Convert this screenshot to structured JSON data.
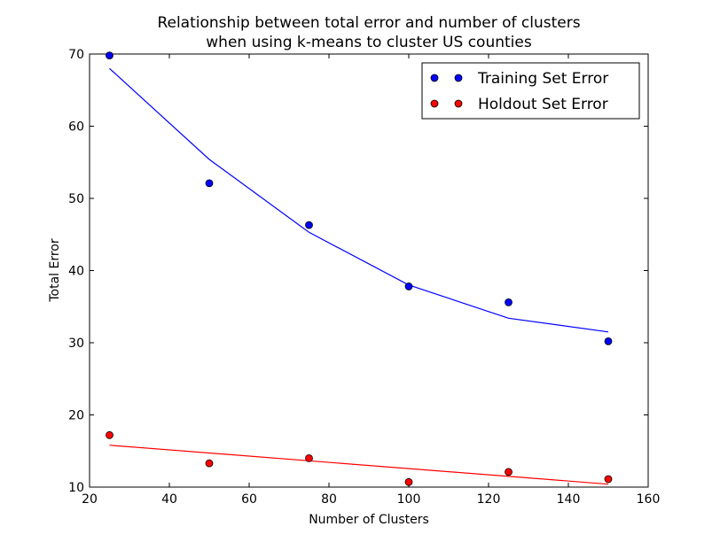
{
  "chart_data": {
    "type": "scatter",
    "title_lines": [
      "Relationship between total error and number of clusters",
      "when using k-means to cluster US counties"
    ],
    "xlabel": "Number of Clusters",
    "ylabel": "Total Error",
    "xlim": [
      20,
      160
    ],
    "ylim": [
      10,
      70
    ],
    "xticks": [
      "20",
      "40",
      "60",
      "80",
      "100",
      "120",
      "140",
      "160"
    ],
    "yticks": [
      "10",
      "20",
      "30",
      "40",
      "50",
      "60",
      "70"
    ],
    "legend_position": "top-right",
    "grid": false,
    "series": [
      {
        "name": "Training Set Error",
        "color": "#0000ff",
        "points": [
          [
            25,
            69.8
          ],
          [
            50,
            52.1
          ],
          [
            75,
            46.3
          ],
          [
            100,
            37.8
          ],
          [
            125,
            35.6
          ],
          [
            150,
            30.2
          ]
        ],
        "fit_line": [
          [
            25,
            68.0
          ],
          [
            50,
            55.4
          ],
          [
            75,
            45.3
          ],
          [
            100,
            38.0
          ],
          [
            125,
            33.4
          ],
          [
            150,
            31.5
          ]
        ]
      },
      {
        "name": "Holdout Set Error",
        "color": "#ff0000",
        "points": [
          [
            25,
            17.2
          ],
          [
            50,
            13.3
          ],
          [
            75,
            14.0
          ],
          [
            100,
            10.7
          ],
          [
            125,
            12.1
          ],
          [
            150,
            11.1
          ]
        ],
        "fit_line": [
          [
            25,
            15.8
          ],
          [
            150,
            10.4
          ]
        ]
      }
    ]
  }
}
